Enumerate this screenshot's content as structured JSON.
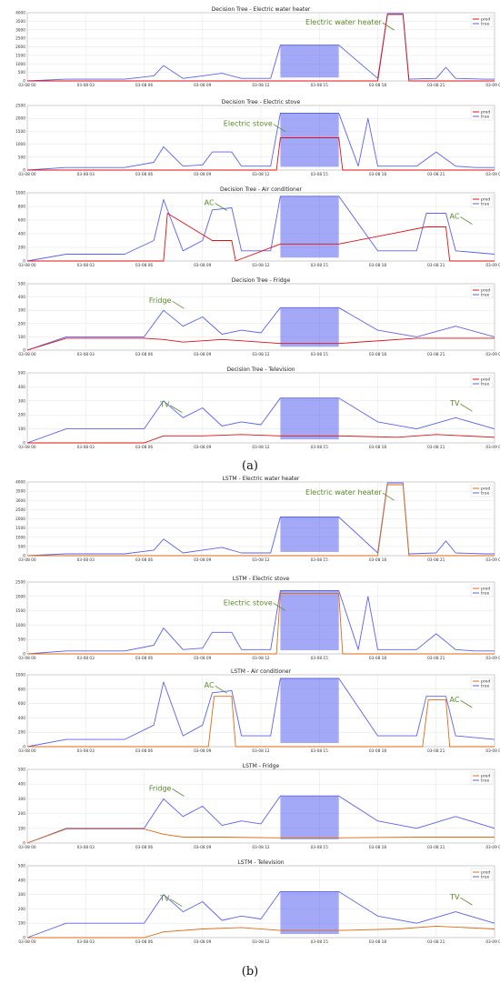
{
  "figure": {
    "labels": [
      "(a)",
      "(b)"
    ],
    "colors": {
      "true": "#5a62f0",
      "pred_dt": "#e01010",
      "pred_lstm": "#e06a10",
      "annotation": "#5a8a2a",
      "grid": "#e3e3e3"
    }
  },
  "chart_data": [
    {
      "type": "line",
      "title": "Decision Tree - Electric water heater",
      "xticks": [
        "03-08 00",
        "03-08 03",
        "03-08 06",
        "03-08 09",
        "03-08 12",
        "03-08 15",
        "03-08 18",
        "03-08 21",
        "03-09 00"
      ],
      "ylim": [
        0,
        4000
      ],
      "yticks": [
        0,
        500,
        1000,
        1500,
        2000,
        2500,
        3000,
        3500,
        4000
      ],
      "grid": true,
      "legend_position": "top-right",
      "legend": [
        "pred",
        "true"
      ],
      "series": [
        {
          "name": "true",
          "x": [
            0,
            2,
            5,
            6.5,
            7,
            8,
            9,
            10,
            11,
            12.5,
            13,
            16,
            18,
            18.5,
            19.3,
            19.6,
            21,
            21.5,
            22,
            23.5,
            24
          ],
          "y": [
            0,
            100,
            100,
            300,
            900,
            150,
            300,
            450,
            150,
            150,
            2100,
            2100,
            150,
            3950,
            3950,
            100,
            150,
            800,
            150,
            100,
            100
          ]
        },
        {
          "name": "pred",
          "x": [
            0,
            18,
            18.5,
            19.3,
            19.6,
            24
          ],
          "y": [
            0,
            0,
            3900,
            3900,
            0,
            0
          ]
        }
      ],
      "annotations": [
        {
          "text": "Electric water heater",
          "x": 18.2,
          "y": 3300
        }
      ]
    },
    {
      "type": "line",
      "title": "Decision Tree - Electric stove",
      "xticks": [
        "03-08 00",
        "03-08 03",
        "03-08 06",
        "03-08 09",
        "03-08 12",
        "03-08 15",
        "03-08 18",
        "03-08 21",
        "03-09 00"
      ],
      "ylim": [
        0,
        2500
      ],
      "yticks": [
        0,
        500,
        1000,
        1500,
        2000,
        2500
      ],
      "grid": true,
      "legend_position": "top-right",
      "legend": [
        "pred",
        "true"
      ],
      "series": [
        {
          "name": "true",
          "x": [
            0,
            2,
            5,
            6.5,
            7,
            8,
            9,
            9.5,
            10.5,
            11,
            12.5,
            13,
            16,
            17,
            17.5,
            18,
            20,
            21,
            22,
            23,
            24
          ],
          "y": [
            0,
            100,
            100,
            300,
            900,
            150,
            200,
            700,
            700,
            150,
            150,
            2200,
            2200,
            150,
            2000,
            150,
            150,
            700,
            150,
            100,
            100
          ]
        },
        {
          "name": "pred",
          "x": [
            0,
            12.8,
            13,
            16,
            16.2,
            24
          ],
          "y": [
            0,
            0,
            1250,
            1250,
            0,
            0
          ]
        }
      ],
      "annotations": [
        {
          "text": "Electric stove",
          "x": 12.6,
          "y": 1700
        }
      ]
    },
    {
      "type": "line",
      "title": "Decision Tree - Air conditioner",
      "xticks": [
        "03-08 00",
        "03-08 03",
        "03-08 06",
        "03-08 09",
        "03-08 12",
        "03-08 15",
        "03-08 18",
        "03-08 21",
        "03-09 00"
      ],
      "ylim": [
        0,
        1000
      ],
      "yticks": [
        0,
        200,
        400,
        600,
        800,
        1000
      ],
      "grid": true,
      "legend_position": "top-right",
      "legend": [
        "pred",
        "true"
      ],
      "series": [
        {
          "name": "true",
          "x": [
            0,
            2,
            5,
            6.5,
            7,
            8,
            9,
            9.5,
            10.5,
            11,
            12.5,
            13,
            16,
            18,
            20,
            20.5,
            21.5,
            22,
            24
          ],
          "y": [
            0,
            100,
            100,
            300,
            900,
            150,
            300,
            750,
            780,
            150,
            150,
            950,
            950,
            150,
            150,
            700,
            700,
            150,
            100
          ]
        },
        {
          "name": "pred",
          "x": [
            0,
            7,
            7.2,
            9.5,
            10.5,
            10.7,
            13,
            16,
            20.5,
            21.5,
            21.7,
            24
          ],
          "y": [
            0,
            0,
            700,
            300,
            300,
            0,
            250,
            250,
            500,
            500,
            0,
            0
          ]
        }
      ],
      "annotations": [
        {
          "text": "AC",
          "x": 9.6,
          "y": 820
        },
        {
          "text": "AC",
          "x": 22.2,
          "y": 620
        }
      ]
    },
    {
      "type": "line",
      "title": "Decision Tree - Fridge",
      "xticks": [
        "03-08 00",
        "03-08 03",
        "03-08 06",
        "03-08 09",
        "03-08 12",
        "03-08 15",
        "03-08 18",
        "03-08 21",
        "03-09 00"
      ],
      "ylim": [
        0,
        500
      ],
      "yticks": [
        0,
        100,
        200,
        300,
        400,
        500
      ],
      "grid": true,
      "legend_position": "top-right",
      "legend": [
        "pred",
        "true"
      ],
      "series": [
        {
          "name": "true",
          "x": [
            0,
            2,
            6,
            7,
            8,
            9,
            10,
            11,
            12,
            13,
            16,
            18,
            20,
            22,
            24
          ],
          "y": [
            0,
            100,
            100,
            300,
            180,
            250,
            120,
            150,
            130,
            320,
            320,
            150,
            100,
            180,
            100
          ]
        },
        {
          "name": "pred",
          "x": [
            0,
            2,
            6,
            7,
            8,
            10,
            13,
            16,
            20,
            24
          ],
          "y": [
            0,
            90,
            90,
            80,
            60,
            80,
            50,
            50,
            90,
            90
          ]
        }
      ],
      "annotations": [
        {
          "text": "Fridge",
          "x": 7.4,
          "y": 355
        }
      ]
    },
    {
      "type": "line",
      "title": "Decision Tree - Television",
      "xticks": [
        "03-08 00",
        "03-08 03",
        "03-08 06",
        "03-08 09",
        "03-08 12",
        "03-08 15",
        "03-08 18",
        "03-08 21",
        "03-09 00"
      ],
      "ylim": [
        0,
        500
      ],
      "yticks": [
        0,
        100,
        200,
        300,
        400,
        500
      ],
      "grid": true,
      "legend_position": "top-right",
      "legend": [
        "pred",
        "true"
      ],
      "series": [
        {
          "name": "true",
          "x": [
            0,
            2,
            6,
            7,
            8,
            9,
            10,
            11,
            12,
            13,
            16,
            18,
            20,
            22,
            24
          ],
          "y": [
            0,
            100,
            100,
            300,
            180,
            250,
            120,
            150,
            130,
            320,
            320,
            150,
            100,
            180,
            100
          ]
        },
        {
          "name": "pred",
          "x": [
            0,
            6,
            7,
            9,
            11,
            13,
            16,
            19,
            21,
            24
          ],
          "y": [
            0,
            0,
            50,
            50,
            60,
            50,
            50,
            40,
            60,
            40
          ]
        }
      ],
      "annotations": [
        {
          "text": "TV",
          "x": 7.3,
          "y": 255
        },
        {
          "text": "TV",
          "x": 22.2,
          "y": 265
        }
      ]
    },
    {
      "type": "line",
      "title": "LSTM - Electric water heater",
      "xticks": [
        "03-08 00",
        "03-08 03",
        "03-08 06",
        "03-08 09",
        "03-08 12",
        "03-08 15",
        "03-08 18",
        "03-08 21",
        "03-09 00"
      ],
      "ylim": [
        0,
        4000
      ],
      "yticks": [
        0,
        500,
        1000,
        1500,
        2000,
        2500,
        3000,
        3500,
        4000
      ],
      "grid": true,
      "legend_position": "top-right",
      "legend": [
        "pred",
        "true"
      ],
      "series": [
        {
          "name": "true",
          "x": [
            0,
            2,
            5,
            6.5,
            7,
            8,
            9,
            10,
            11,
            12.5,
            13,
            16,
            18,
            18.5,
            19.3,
            19.6,
            21,
            21.5,
            22,
            23.5,
            24
          ],
          "y": [
            0,
            100,
            100,
            300,
            900,
            150,
            300,
            450,
            150,
            150,
            2100,
            2100,
            150,
            3950,
            3950,
            100,
            150,
            800,
            150,
            100,
            100
          ]
        },
        {
          "name": "pred",
          "x": [
            0,
            18,
            18.5,
            19.3,
            19.6,
            24
          ],
          "y": [
            0,
            0,
            3850,
            3850,
            0,
            0
          ]
        }
      ],
      "annotations": [
        {
          "text": "Electric water heater",
          "x": 18.2,
          "y": 3300
        }
      ]
    },
    {
      "type": "line",
      "title": "LSTM - Electric stove",
      "xticks": [
        "03-08 00",
        "03-08 03",
        "03-08 06",
        "03-08 09",
        "03-08 12",
        "03-08 15",
        "03-08 18",
        "03-08 21",
        "03-09 00"
      ],
      "ylim": [
        0,
        2500
      ],
      "yticks": [
        0,
        500,
        1000,
        1500,
        2000,
        2500
      ],
      "grid": true,
      "legend_position": "top-right",
      "legend": [
        "pred",
        "true"
      ],
      "series": [
        {
          "name": "true",
          "x": [
            0,
            2,
            5,
            6.5,
            7,
            8,
            9,
            9.5,
            10.5,
            11,
            12.5,
            13,
            16,
            17,
            17.5,
            18,
            20,
            21,
            22,
            23,
            24
          ],
          "y": [
            0,
            100,
            100,
            300,
            900,
            150,
            200,
            750,
            750,
            150,
            150,
            2200,
            2200,
            150,
            2000,
            150,
            150,
            700,
            150,
            100,
            100
          ]
        },
        {
          "name": "pred",
          "x": [
            0,
            12.8,
            13,
            16,
            16.2,
            24
          ],
          "y": [
            0,
            0,
            2100,
            2100,
            0,
            0
          ]
        }
      ],
      "annotations": [
        {
          "text": "Electric stove",
          "x": 12.6,
          "y": 1700
        }
      ]
    },
    {
      "type": "line",
      "title": "LSTM - Air conditioner",
      "xticks": [
        "03-08 00",
        "03-08 03",
        "03-08 06",
        "03-08 09",
        "03-08 12",
        "03-08 15",
        "03-08 18",
        "03-08 21",
        "03-09 00"
      ],
      "ylim": [
        0,
        1000
      ],
      "yticks": [
        0,
        200,
        400,
        600,
        800,
        1000
      ],
      "grid": true,
      "legend_position": "top-right",
      "legend": [
        "pred",
        "true"
      ],
      "series": [
        {
          "name": "true",
          "x": [
            0,
            2,
            5,
            6.5,
            7,
            8,
            9,
            9.5,
            10.5,
            11,
            12.5,
            13,
            16,
            18,
            20,
            20.5,
            21.5,
            22,
            24
          ],
          "y": [
            0,
            100,
            100,
            300,
            900,
            150,
            300,
            750,
            780,
            150,
            150,
            950,
            950,
            150,
            150,
            700,
            700,
            150,
            100
          ]
        },
        {
          "name": "pred",
          "x": [
            0,
            9.3,
            9.6,
            10.5,
            10.7,
            20.3,
            20.6,
            21.5,
            21.7,
            24
          ],
          "y": [
            0,
            0,
            700,
            700,
            0,
            0,
            650,
            650,
            0,
            0
          ]
        }
      ],
      "annotations": [
        {
          "text": "AC",
          "x": 9.6,
          "y": 820
        },
        {
          "text": "AC",
          "x": 22.2,
          "y": 620
        }
      ]
    },
    {
      "type": "line",
      "title": "LSTM - Fridge",
      "xticks": [
        "03-08 00",
        "03-08 03",
        "03-08 06",
        "03-08 09",
        "03-08 12",
        "03-08 15",
        "03-08 18",
        "03-08 21",
        "03-09 00"
      ],
      "ylim": [
        0,
        500
      ],
      "yticks": [
        0,
        100,
        200,
        300,
        400,
        500
      ],
      "grid": true,
      "legend_position": "top-right",
      "legend": [
        "pred",
        "true"
      ],
      "series": [
        {
          "name": "true",
          "x": [
            0,
            2,
            6,
            7,
            8,
            9,
            10,
            11,
            12,
            13,
            16,
            18,
            20,
            22,
            24
          ],
          "y": [
            0,
            100,
            100,
            300,
            180,
            250,
            120,
            150,
            130,
            320,
            320,
            150,
            100,
            180,
            100
          ]
        },
        {
          "name": "pred",
          "x": [
            0,
            2,
            6,
            7,
            8,
            10,
            13,
            16,
            20,
            24
          ],
          "y": [
            0,
            95,
            95,
            60,
            40,
            40,
            35,
            35,
            40,
            40
          ]
        }
      ],
      "annotations": [
        {
          "text": "Fridge",
          "x": 7.4,
          "y": 355
        }
      ]
    },
    {
      "type": "line",
      "title": "LSTM - Television",
      "xticks": [
        "03-08 00",
        "03-08 03",
        "03-08 06",
        "03-08 09",
        "03-08 12",
        "03-08 15",
        "03-08 18",
        "03-08 21",
        "03-09 00"
      ],
      "ylim": [
        0,
        500
      ],
      "yticks": [
        0,
        100,
        200,
        300,
        400,
        500
      ],
      "grid": true,
      "legend_position": "top-right",
      "legend": [
        "pred",
        "true"
      ],
      "series": [
        {
          "name": "true",
          "x": [
            0,
            2,
            6,
            7,
            8,
            9,
            10,
            11,
            12,
            13,
            16,
            18,
            20,
            22,
            24
          ],
          "y": [
            0,
            100,
            100,
            300,
            180,
            250,
            120,
            150,
            130,
            320,
            320,
            150,
            100,
            180,
            100
          ]
        },
        {
          "name": "pred",
          "x": [
            0,
            6,
            7,
            9,
            11,
            13,
            16,
            19,
            21,
            24
          ],
          "y": [
            0,
            0,
            40,
            60,
            70,
            50,
            50,
            60,
            80,
            60
          ]
        }
      ],
      "annotations": [
        {
          "text": "TV",
          "x": 7.3,
          "y": 255
        },
        {
          "text": "TV",
          "x": 22.2,
          "y": 265
        }
      ]
    }
  ]
}
